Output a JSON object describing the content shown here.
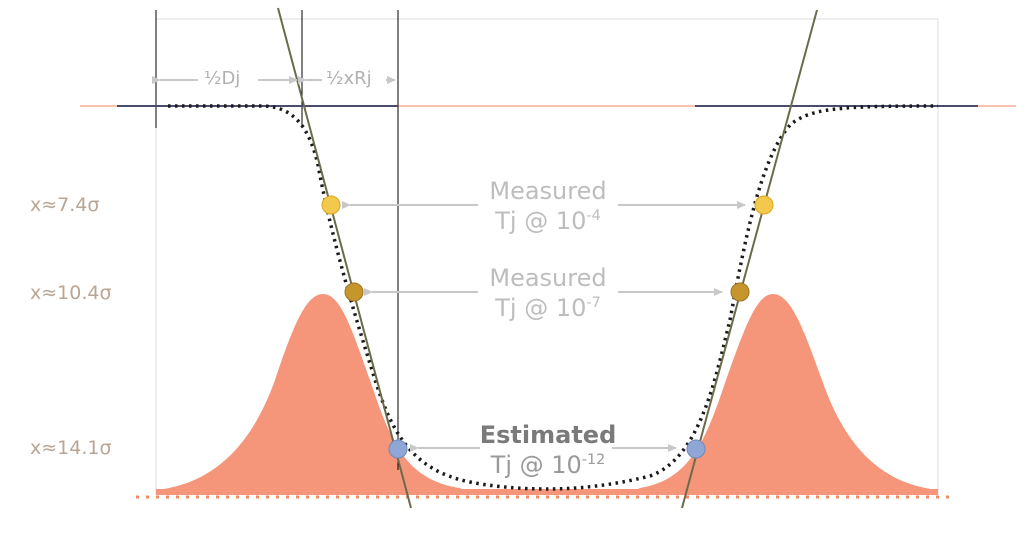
{
  "sigma_levels": [
    {
      "label": "x≈7.4σ",
      "marker_color": "#f2c94c"
    },
    {
      "label": "x≈10.4σ",
      "marker_color": "#c6962d"
    },
    {
      "label": "x≈14.1σ",
      "marker_color": "#8fa6d6"
    }
  ],
  "jitter_labels": {
    "dj": "½Dj",
    "rj": "½xRj"
  },
  "annotations": [
    {
      "title": "Measured",
      "prefix": "Tj @ 10",
      "exponent": "-4"
    },
    {
      "title": "Measured",
      "prefix": "Tj @ 10",
      "exponent": "-7"
    },
    {
      "title": "Estimated",
      "prefix": "Tj @ 10",
      "exponent": "-12"
    }
  ],
  "colors": {
    "pdf_fill": "#f5967a",
    "baseline": "#f08a62",
    "bathtub_curve": "#1a1a1a",
    "tangent_line": "#6b6b4a",
    "flat_segment": "#4a4a6a"
  }
}
